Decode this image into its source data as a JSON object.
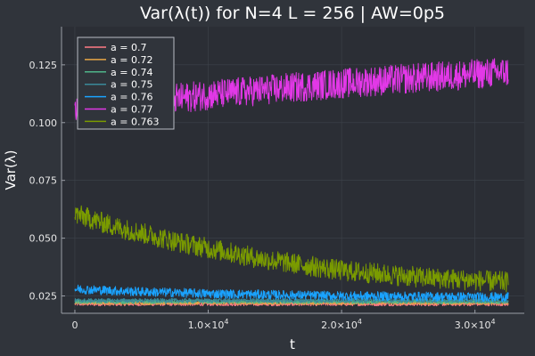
{
  "chart_data": {
    "type": "line",
    "title": "Var(λ(t)) for N=4 L = 256 | AW=0p5",
    "xlabel": "t",
    "ylabel": "Var(λ)",
    "xlim": [
      -1000,
      33700
    ],
    "ylim": [
      0.0175,
      0.1415
    ],
    "xticks": [
      0,
      10000,
      20000,
      30000
    ],
    "xtick_labels": [
      {
        "base": "0",
        "exp": ""
      },
      {
        "base": "1.0×10",
        "exp": "4"
      },
      {
        "base": "2.0×10",
        "exp": "4"
      },
      {
        "base": "3.0×10",
        "exp": "4"
      }
    ],
    "yticks": [
      0.025,
      0.05,
      0.075,
      0.1,
      0.125
    ],
    "ytick_labels": [
      "0.025",
      "0.050",
      "0.075",
      "0.100",
      "0.125"
    ],
    "grid": true,
    "legend_position": "top-left",
    "colors": {
      "background": "#30343b",
      "plot_background": "#2b2e35",
      "grid": "#3e434b",
      "axis": "#9a9ea6"
    },
    "series": [
      {
        "name": "a = 0.7",
        "color": "#ff7b86",
        "x": [
          0,
          8000,
          16000,
          24000,
          32500
        ],
        "y": [
          0.0215,
          0.0215,
          0.0215,
          0.0215,
          0.0215
        ],
        "noise": 0.0008
      },
      {
        "name": "a = 0.72",
        "color": "#e8a646",
        "x": [
          0,
          8000,
          16000,
          24000,
          32500
        ],
        "y": [
          0.022,
          0.022,
          0.022,
          0.022,
          0.022
        ],
        "noise": 0.0008
      },
      {
        "name": "a = 0.74",
        "color": "#4fb58a",
        "x": [
          0,
          8000,
          16000,
          24000,
          32500
        ],
        "y": [
          0.0225,
          0.0225,
          0.0225,
          0.0225,
          0.0225
        ],
        "noise": 0.0009
      },
      {
        "name": "a = 0.75",
        "color": "#3a8a9a",
        "x": [
          0,
          8000,
          16000,
          24000,
          32500
        ],
        "y": [
          0.023,
          0.023,
          0.023,
          0.023,
          0.023
        ],
        "noise": 0.0009
      },
      {
        "name": "a = 0.76",
        "color": "#1aa3ff",
        "x": [
          0,
          4000,
          10000,
          20000,
          32500
        ],
        "y": [
          0.028,
          0.027,
          0.026,
          0.025,
          0.0245
        ],
        "noise": 0.002
      },
      {
        "name": "a = 0.77",
        "color": "#e238e7",
        "x": [
          0,
          4000,
          10000,
          20000,
          32500
        ],
        "y": [
          0.104,
          0.108,
          0.112,
          0.117,
          0.122
        ],
        "noise": 0.0065
      },
      {
        "name": "a = 0.763",
        "color": "#7a9b00",
        "x": [
          0,
          3000,
          8000,
          14000,
          20000,
          26000,
          32500
        ],
        "y": [
          0.0605,
          0.055,
          0.048,
          0.041,
          0.036,
          0.033,
          0.031
        ],
        "noise": 0.0045
      }
    ]
  }
}
